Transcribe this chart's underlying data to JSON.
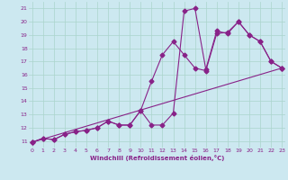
{
  "xlabel": "Windchill (Refroidissement éolien,°C)",
  "yticks": [
    11,
    12,
    13,
    14,
    15,
    16,
    17,
    18,
    19,
    20,
    21
  ],
  "xticks": [
    0,
    1,
    2,
    3,
    4,
    5,
    6,
    7,
    8,
    9,
    10,
    11,
    12,
    13,
    14,
    15,
    16,
    17,
    18,
    19,
    20,
    21,
    22,
    23
  ],
  "xlim": [
    -0.3,
    23.3
  ],
  "ylim": [
    10.5,
    21.5
  ],
  "bg_color": "#cce8f0",
  "grid_color": "#aad4cc",
  "line_color": "#882288",
  "line1_x": [
    0,
    1,
    2,
    3,
    4,
    5,
    6,
    7,
    8,
    9,
    10,
    11,
    12,
    13,
    14,
    15,
    16,
    17,
    18,
    19,
    20,
    21,
    22,
    23
  ],
  "line1_y": [
    10.9,
    11.2,
    11.1,
    11.5,
    11.7,
    11.8,
    12.0,
    12.5,
    12.2,
    12.2,
    13.3,
    12.2,
    12.2,
    13.1,
    20.8,
    21.0,
    16.4,
    19.3,
    19.1,
    20.0,
    19.0,
    18.5,
    17.0,
    16.5
  ],
  "line2_x": [
    0,
    1,
    2,
    3,
    4,
    5,
    6,
    7,
    8,
    9,
    10,
    11,
    12,
    13,
    14,
    15,
    16,
    17,
    18,
    19,
    20,
    21,
    22,
    23
  ],
  "line2_y": [
    10.9,
    11.2,
    11.1,
    11.5,
    11.7,
    11.8,
    12.0,
    12.5,
    12.2,
    12.2,
    13.3,
    15.5,
    17.5,
    18.5,
    17.5,
    16.5,
    16.3,
    19.1,
    19.2,
    20.0,
    19.0,
    18.5,
    17.0,
    16.5
  ],
  "line3_x": [
    0,
    23
  ],
  "line3_y": [
    10.9,
    16.5
  ],
  "markersize": 2.5,
  "linewidth": 0.8
}
